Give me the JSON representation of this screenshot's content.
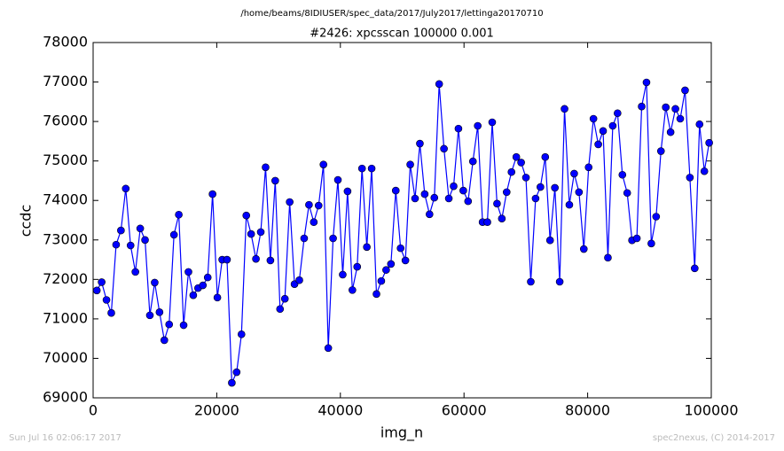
{
  "chart_data": {
    "type": "line",
    "suptitle": "/home/beams/8IDIUSER/spec_data/2017/July2017/lettinga20170710",
    "title": "#2426: xpcsscan 100000 0.001",
    "x_label": "img_n",
    "y_label": "ccdc",
    "footer_left": "Sun Jul 16 02:06:17 2017",
    "footer_right": "spec2nexus, (C) 2014-2017",
    "color": "#0000ff",
    "markers": true,
    "grid": false,
    "xlim": [
      0,
      100000
    ],
    "xticks": [
      0,
      20000,
      40000,
      60000,
      80000,
      100000
    ],
    "ylim": [
      69000,
      78000
    ],
    "yticks": [
      69000,
      70000,
      71000,
      72000,
      73000,
      74000,
      75000,
      76000,
      77000,
      78000
    ],
    "x": [
      600,
      1380,
      2160,
      2940,
      3720,
      4500,
      5280,
      6060,
      6840,
      7620,
      8400,
      9180,
      9960,
      10740,
      11520,
      12300,
      13080,
      13860,
      14640,
      15420,
      16200,
      16980,
      17760,
      18540,
      19320,
      20100,
      20880,
      21660,
      22440,
      23220,
      24000,
      24780,
      25560,
      26340,
      27120,
      27900,
      28680,
      29460,
      30240,
      31020,
      31800,
      32580,
      33360,
      34140,
      34920,
      35700,
      36480,
      37260,
      38040,
      38820,
      39600,
      40380,
      41160,
      41940,
      42720,
      43500,
      44280,
      45060,
      45840,
      46620,
      47400,
      48180,
      48960,
      49740,
      50520,
      51300,
      52080,
      52860,
      53640,
      54420,
      55200,
      55980,
      56760,
      57540,
      58320,
      59100,
      59880,
      60660,
      61440,
      62220,
      63000,
      63780,
      64560,
      65340,
      66120,
      66900,
      67680,
      68460,
      69240,
      70020,
      70800,
      71580,
      72360,
      73140,
      73920,
      74700,
      75480,
      76260,
      77040,
      77820,
      78600,
      79380,
      80160,
      80940,
      81720,
      82500,
      83280,
      84060,
      84840,
      85620,
      86400,
      87180,
      87960,
      88740,
      89520,
      90300,
      91080,
      91860,
      92640,
      93420,
      94200,
      94980,
      95760,
      96540,
      97320,
      98100,
      98880,
      99660
    ],
    "values": [
      71720,
      71930,
      71480,
      71150,
      72880,
      73240,
      74300,
      72860,
      72190,
      73290,
      73000,
      71090,
      71920,
      71170,
      70460,
      70860,
      73130,
      73640,
      70840,
      72190,
      71600,
      71780,
      71850,
      72050,
      74160,
      71540,
      72500,
      72500,
      69380,
      69650,
      70610,
      73620,
      73150,
      72520,
      73200,
      74840,
      72480,
      74500,
      71250,
      71510,
      73960,
      71880,
      71980,
      73040,
      73890,
      73450,
      73870,
      74910,
      70260,
      73040,
      74520,
      72120,
      74230,
      71730,
      72320,
      74810,
      72820,
      74810,
      71630,
      71960,
      72240,
      72390,
      74250,
      72790,
      72480,
      74910,
      74050,
      75440,
      74160,
      73650,
      74070,
      76950,
      75310,
      74050,
      74360,
      75820,
      74250,
      73980,
      74990,
      75890,
      73450,
      73450,
      75980,
      73920,
      73540,
      74210,
      74720,
      75100,
      74960,
      74580,
      71940,
      74050,
      74340,
      75100,
      72990,
      74320,
      71940,
      76320,
      73890,
      74680,
      74210,
      72770,
      74840,
      76070,
      75420,
      75760,
      72550,
      75890,
      76210,
      74650,
      74190,
      72990,
      73040,
      76380,
      76990,
      72910,
      73590,
      75250,
      76360,
      75730,
      76320,
      76070,
      76790,
      74580,
      72280,
      75930,
      74740,
      75460
    ]
  }
}
